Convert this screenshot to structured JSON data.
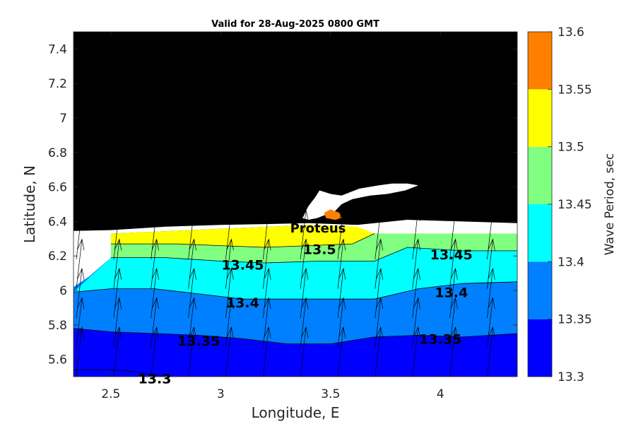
{
  "chart_data": {
    "type": "filled-contour",
    "title": "Valid for 28-Aug-2025 0800 GMT",
    "xlabel": "Longitude, E",
    "ylabel": "Latitude, N",
    "xlim": [
      2.33,
      4.35
    ],
    "ylim": [
      5.5,
      7.5
    ],
    "xticks": [
      "2.5",
      "3",
      "3.5",
      "4"
    ],
    "yticks": [
      "5.6",
      "5.8",
      "6",
      "6.2",
      "6.4",
      "6.6",
      "6.8",
      "7",
      "7.2",
      "7.4"
    ],
    "grid": false,
    "colorbar": {
      "label": "Wave Period, sec",
      "levels": [
        "13.3",
        "13.35",
        "13.4",
        "13.45",
        "13.5",
        "13.55",
        "13.6"
      ],
      "colors": [
        "#0000ff",
        "#0080ff",
        "#00ffff",
        "#80ff80",
        "#ffff00",
        "#ff8000"
      ]
    },
    "contour_lines": [
      {
        "level": 13.3,
        "points": [
          [
            2.33,
            5.54
          ],
          [
            2.5,
            5.54
          ],
          [
            2.6,
            5.53
          ],
          [
            2.7,
            5.51
          ],
          [
            2.75,
            5.5
          ]
        ]
      },
      {
        "level": 13.35,
        "points": [
          [
            2.33,
            5.78
          ],
          [
            2.5,
            5.76
          ],
          [
            2.7,
            5.75
          ],
          [
            2.9,
            5.74
          ],
          [
            3.1,
            5.72
          ],
          [
            3.3,
            5.69
          ],
          [
            3.5,
            5.69
          ],
          [
            3.7,
            5.73
          ],
          [
            3.9,
            5.74
          ],
          [
            4.1,
            5.73
          ],
          [
            4.35,
            5.75
          ]
        ]
      },
      {
        "level": 13.4,
        "points": [
          [
            2.33,
            5.99
          ],
          [
            2.5,
            6.01
          ],
          [
            2.7,
            6.01
          ],
          [
            2.9,
            5.98
          ],
          [
            3.1,
            5.95
          ],
          [
            3.3,
            5.95
          ],
          [
            3.5,
            5.95
          ],
          [
            3.7,
            5.95
          ],
          [
            3.9,
            6.01
          ],
          [
            4.1,
            6.04
          ],
          [
            4.35,
            6.05
          ]
        ]
      },
      {
        "level": 13.45,
        "points": [
          [
            2.5,
            6.19
          ],
          [
            2.75,
            6.19
          ],
          [
            3.0,
            6.17
          ],
          [
            3.2,
            6.16
          ],
          [
            3.45,
            6.17
          ],
          [
            3.7,
            6.17
          ],
          [
            3.85,
            6.25
          ],
          [
            4.1,
            6.23
          ],
          [
            4.35,
            6.23
          ]
        ]
      },
      {
        "level": 13.5,
        "points": [
          [
            2.5,
            6.27
          ],
          [
            2.8,
            6.27
          ],
          [
            3.0,
            6.26
          ],
          [
            3.2,
            6.25
          ],
          [
            3.4,
            6.26
          ],
          [
            3.6,
            6.27
          ],
          [
            3.7,
            6.33
          ]
        ]
      }
    ],
    "contour_labels": [
      "13.3",
      "13.35",
      "13.35",
      "13.4",
      "13.4",
      "13.45",
      "13.45",
      "13.5"
    ],
    "station": {
      "name": "Proteus",
      "lon": 3.5,
      "lat": 6.35
    }
  }
}
